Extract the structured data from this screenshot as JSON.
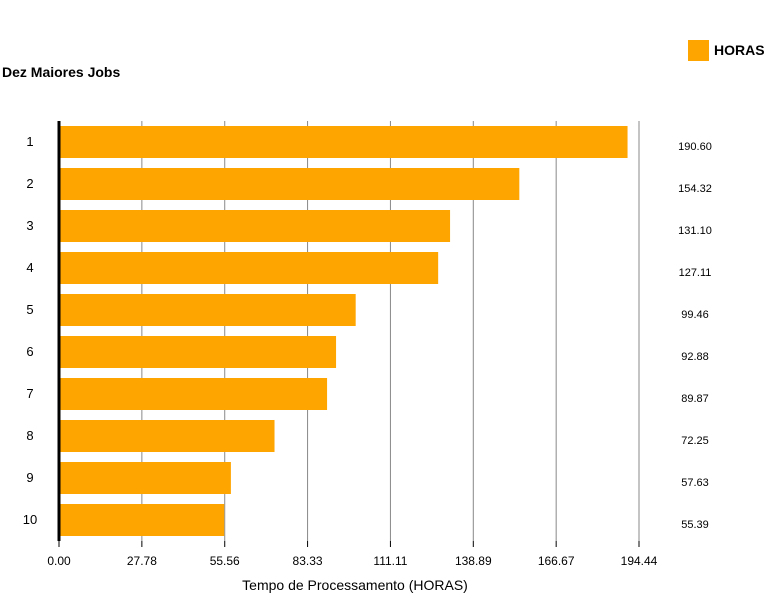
{
  "chart_data": {
    "type": "bar",
    "orientation": "horizontal",
    "title": "Dez Maiores Jobs",
    "xlabel": "Tempo de Processamento (HORAS)",
    "ylabel": "",
    "categories": [
      "1",
      "2",
      "3",
      "4",
      "5",
      "6",
      "7",
      "8",
      "9",
      "10"
    ],
    "series": [
      {
        "name": "HORAS",
        "color": "#FFA500",
        "values": [
          190.6,
          154.32,
          131.1,
          127.11,
          99.46,
          92.88,
          89.87,
          72.25,
          57.63,
          55.39
        ],
        "labels": [
          "190.60",
          "154.32",
          "131.10",
          "127.11",
          "99.46",
          "92.88",
          "89.87",
          "72.25",
          "57.63",
          "55.39"
        ]
      }
    ],
    "xlim": [
      0,
      194.44
    ],
    "xticks": [
      "0.00",
      "27.78",
      "55.56",
      "83.33",
      "111.11",
      "138.89",
      "166.67",
      "194.44"
    ],
    "grid": true,
    "legend_position": "top-right"
  }
}
